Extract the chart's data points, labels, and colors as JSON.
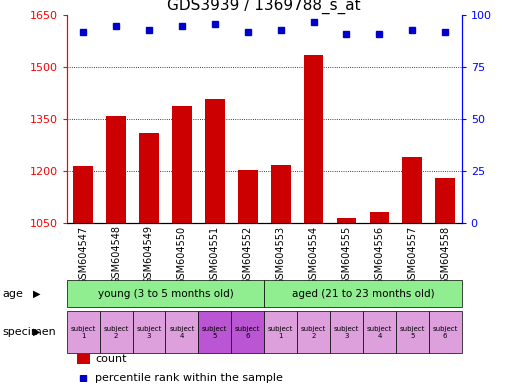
{
  "title": "GDS3939 / 1369788_s_at",
  "categories": [
    "GSM604547",
    "GSM604548",
    "GSM604549",
    "GSM604550",
    "GSM604551",
    "GSM604552",
    "GSM604553",
    "GSM604554",
    "GSM604555",
    "GSM604556",
    "GSM604557",
    "GSM604558"
  ],
  "bar_values": [
    1213,
    1360,
    1310,
    1388,
    1408,
    1202,
    1218,
    1535,
    1065,
    1080,
    1240,
    1178
  ],
  "dot_values": [
    92,
    95,
    93,
    95,
    96,
    92,
    93,
    97,
    91,
    91,
    93,
    92
  ],
  "bar_color": "#cc0000",
  "dot_color": "#0000cc",
  "ylim_left": [
    1050,
    1650
  ],
  "ylim_right": [
    0,
    100
  ],
  "yticks_left": [
    1050,
    1200,
    1350,
    1500,
    1650
  ],
  "yticks_right": [
    0,
    25,
    50,
    75,
    100
  ],
  "grid_values": [
    1200,
    1350,
    1500
  ],
  "age_groups": [
    {
      "label": "young (3 to 5 months old)",
      "start": 0,
      "end": 6,
      "color": "#90ee90"
    },
    {
      "label": "aged (21 to 23 months old)",
      "start": 6,
      "end": 12,
      "color": "#90ee90"
    }
  ],
  "specimen_colors": [
    "#dda0dd",
    "#dda0dd",
    "#dda0dd",
    "#dda0dd",
    "#ba55d3",
    "#ba55d3",
    "#dda0dd",
    "#dda0dd",
    "#dda0dd",
    "#dda0dd",
    "#dda0dd",
    "#dda0dd"
  ],
  "specimen_labels": [
    "subject\n1",
    "subject\n2",
    "subject\n3",
    "subject\n4",
    "subject\n5",
    "subject\n6",
    "subject\n1",
    "subject\n2",
    "subject\n3",
    "subject\n4",
    "subject\n5",
    "subject\n6"
  ],
  "age_label": "age",
  "specimen_label": "specimen",
  "legend_count": "count",
  "legend_percentile": "percentile rank within the sample",
  "bar_width": 0.6,
  "background_color": "#ffffff",
  "x_tick_fontsize": 7,
  "y_tick_fontsize": 8,
  "title_fontsize": 11
}
